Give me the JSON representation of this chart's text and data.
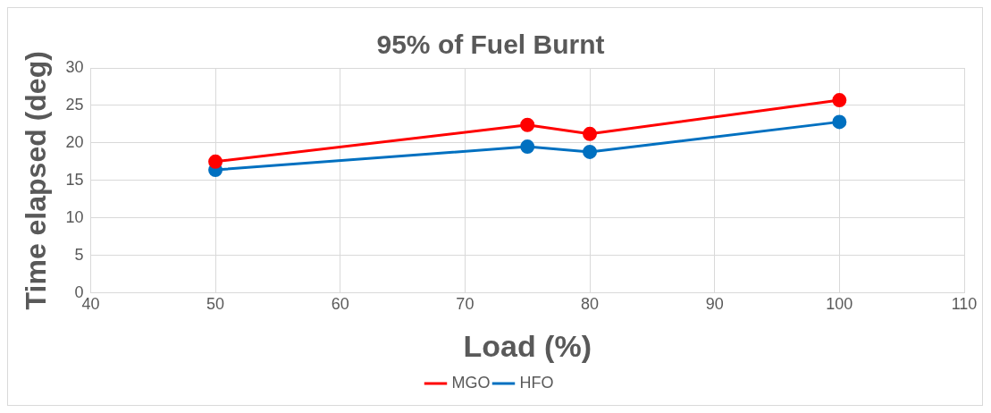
{
  "chart_data": {
    "type": "line",
    "title": "95% of Fuel Burnt",
    "xlabel": "Load (%)",
    "ylabel": "Time elapsed (deg)",
    "x": [
      50,
      75,
      80,
      100
    ],
    "series": [
      {
        "name": "MGO",
        "color": "#ff0000",
        "values": [
          17.5,
          22.4,
          21.2,
          25.7
        ]
      },
      {
        "name": "HFO",
        "color": "#0070c0",
        "values": [
          16.4,
          19.5,
          18.8,
          22.8
        ]
      }
    ],
    "xlim": [
      40,
      110
    ],
    "xticks": [
      40,
      50,
      60,
      70,
      80,
      90,
      100,
      110
    ],
    "ylim": [
      0,
      30
    ],
    "yticks": [
      0,
      5,
      10,
      15,
      20,
      25,
      30
    ],
    "grid": true,
    "legend": "bottom",
    "marker": "circle",
    "line_style": "solid"
  }
}
